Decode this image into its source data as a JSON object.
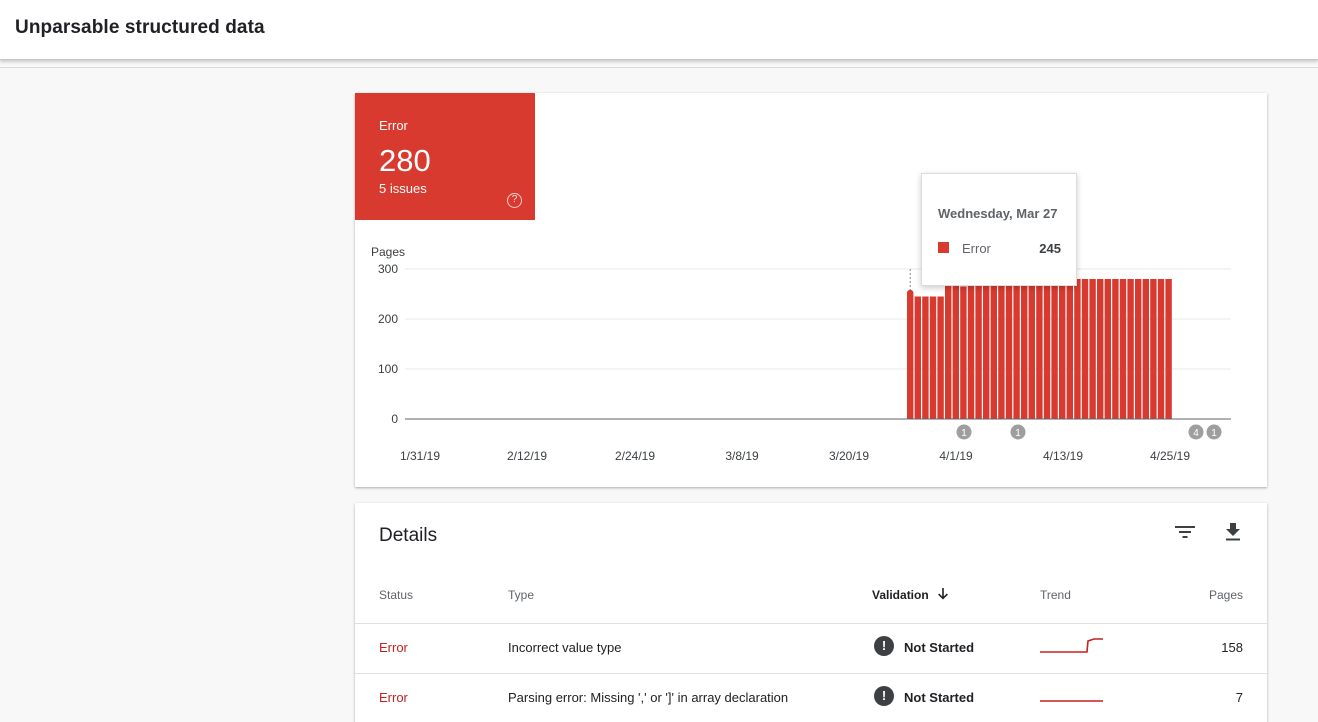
{
  "page_title": "Unparsable structured data",
  "summary": {
    "label": "Error",
    "count": "280",
    "issues": "5 issues",
    "help_icon": "help-circle-icon",
    "color": "#d93a2f"
  },
  "chart_data": {
    "type": "bar",
    "ylabel": "Pages",
    "ylim": [
      0,
      300
    ],
    "yticks": [
      "300",
      "200",
      "100",
      "0"
    ],
    "xlabels": [
      "1/31/19",
      "2/12/19",
      "2/24/19",
      "3/8/19",
      "3/20/19",
      "4/1/19",
      "4/13/19",
      "4/25/19"
    ],
    "series_color": "#d93a2f",
    "values": [
      252,
      245,
      245,
      245,
      245,
      280,
      280,
      265,
      280,
      280,
      280,
      280,
      280,
      280,
      280,
      280,
      280,
      280,
      280,
      280,
      280,
      280,
      280,
      280,
      280,
      280,
      280,
      280,
      280,
      280,
      280,
      280,
      280,
      280,
      280
    ],
    "annotations": [
      {
        "label": "1",
        "near": "4/1/19"
      },
      {
        "label": "1",
        "near": "4/6/19"
      },
      {
        "label": "4",
        "near": "4/28/19"
      },
      {
        "label": "1",
        "near": "4/29/19"
      }
    ]
  },
  "tooltip": {
    "date": "Wednesday, Mar 27",
    "series": "Error",
    "value": "245"
  },
  "details": {
    "title": "Details",
    "filter_icon": "filter-icon",
    "download_icon": "download-icon",
    "columns": {
      "status": "Status",
      "type": "Type",
      "validation": "Validation",
      "trend": "Trend",
      "pages": "Pages"
    },
    "rows": [
      {
        "status": "Error",
        "type": "Incorrect value type",
        "validation": "Not Started",
        "trend": "step-up",
        "pages": "158"
      },
      {
        "status": "Error",
        "type": "Parsing error: Missing ',' or ']' in array declaration",
        "validation": "Not Started",
        "trend": "flat",
        "pages": "7"
      }
    ]
  }
}
